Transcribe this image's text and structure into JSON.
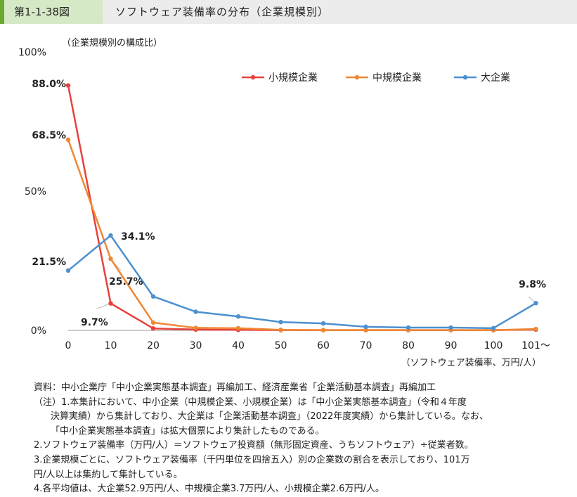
{
  "header": {
    "fig_no": "第1-1-38図",
    "title": "ソフトウェア装備率の分布（企業規模別）"
  },
  "chart_data": {
    "type": "line",
    "ylabel": "（企業規模別の構成比）",
    "xlabel": "（ソフトウェア装備率、万円/人）",
    "categories": [
      "0",
      "10",
      "20",
      "30",
      "40",
      "50",
      "60",
      "70",
      "80",
      "90",
      "100",
      "101～"
    ],
    "y_ticks": [
      "0%",
      "50%",
      "100%"
    ],
    "ylim": [
      0,
      100
    ],
    "legend_position": "top-right",
    "series": [
      {
        "name": "小規模企業",
        "color": "#e8413c",
        "values": [
          88.0,
          9.7,
          0.7,
          0.3,
          0.2,
          0.1,
          0.1,
          0.1,
          0.1,
          0.1,
          0.1,
          0.3
        ]
      },
      {
        "name": "中規模企業",
        "color": "#ef8733",
        "values": [
          68.5,
          25.7,
          2.8,
          0.9,
          0.8,
          0.2,
          0.1,
          0.1,
          0.1,
          0.1,
          0.1,
          0.5
        ]
      },
      {
        "name": "大企業",
        "color": "#4c90d0",
        "values": [
          21.5,
          34.1,
          12.2,
          6.7,
          5.0,
          3.0,
          2.5,
          1.3,
          1.0,
          1.0,
          0.8,
          9.8
        ]
      }
    ],
    "annotations": [
      {
        "text": "88.0%",
        "series": 0,
        "index": 0
      },
      {
        "text": "68.5%",
        "series": 1,
        "index": 0
      },
      {
        "text": "21.5%",
        "series": 2,
        "index": 0
      },
      {
        "text": "34.1%",
        "series": 2,
        "index": 1
      },
      {
        "text": "25.7%",
        "series": 1,
        "index": 1
      },
      {
        "text": "9.7%",
        "series": 0,
        "index": 1
      },
      {
        "text": "9.8%",
        "series": 2,
        "index": 11
      }
    ]
  },
  "notes": [
    "資料：中小企業庁「中小企業実態基本調査」再編加工、経済産業省「企業活動基本調査」再編加工",
    "（注）1.本集計において、中小企業（中規模企業、小規模企業）は「中小企業実態基本調査」（令和４年度",
    "決算実績）から集計しており、大企業は「企業活動基本調査」（2022年度実績）から集計している。なお、",
    "「中小企業実態基本調査」は拡大個票により集計したものである。",
    "2.ソフトウェア装備率（万円/人）＝ソフトウェア投資額（無形固定資産、うちソフトウェア）÷従業者数。",
    "3.企業規模ごとに、ソフトウェア装備率（千円単位を四捨五入）別の企業数の割合を表示しており、101万",
    "円/人以上は集約して集計している。",
    "4.各平均値は、大企業52.9万円/人、中規模企業3.7万円/人、小規模企業2.6万円/人。"
  ]
}
